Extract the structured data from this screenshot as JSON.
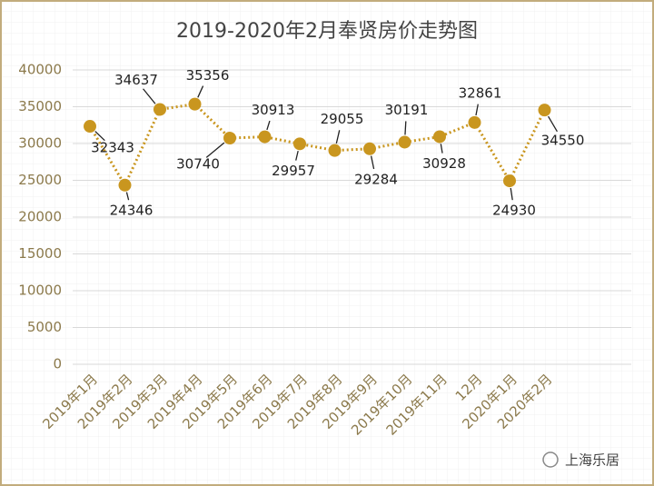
{
  "chart_data": {
    "type": "line",
    "title": "2019-2020年2月奉贤房价走势图",
    "categories": [
      "2019年1月",
      "2019年2月",
      "2019年3月",
      "2019年4月",
      "2019年5月",
      "2019年6月",
      "2019年7月",
      "2019年8月",
      "2019年9月",
      "2019年10月",
      "2019年11月",
      "12月",
      "2020年1月",
      "2020年2月"
    ],
    "values": [
      32343,
      24346,
      34637,
      35356,
      30740,
      30913,
      29957,
      29055,
      29284,
      30191,
      30928,
      32861,
      24930,
      34550
    ],
    "color": "#c9961f",
    "ylim": [
      0,
      40000
    ],
    "yticks": [
      0,
      5000,
      10000,
      15000,
      20000,
      25000,
      30000,
      35000,
      40000
    ],
    "grid": true
  },
  "watermark": "上海乐居"
}
